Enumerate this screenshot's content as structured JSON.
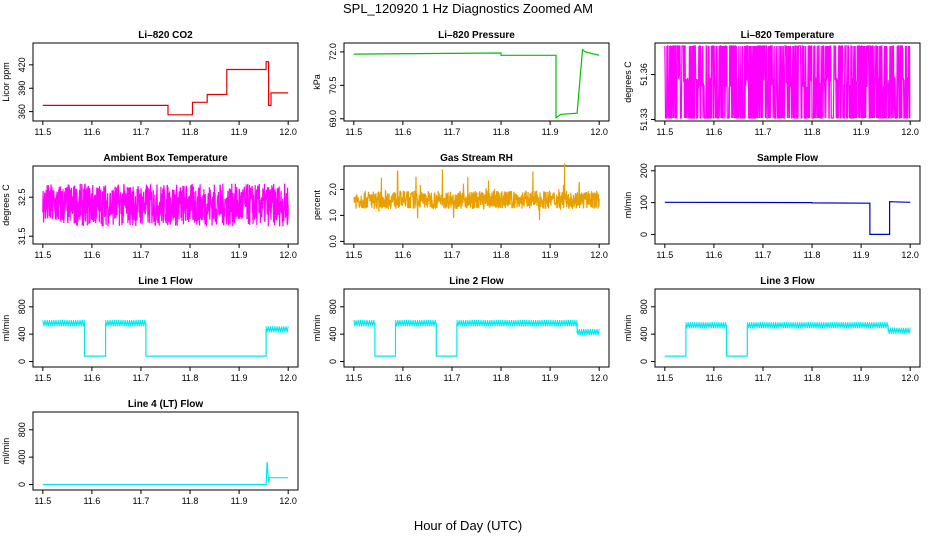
{
  "title": "SPL_120920  1 Hz Diagnostics Zoomed AM",
  "xlabel": "Hour of Day (UTC)",
  "chart_data": [
    {
      "type": "line",
      "title": "Li–820 CO2",
      "ylabel": "Licor ppm",
      "color": "#e00000",
      "xlim": [
        11.48,
        12.02
      ],
      "ylim": [
        348,
        448
      ],
      "xticks": [
        "11.5",
        "11.6",
        "11.7",
        "11.8",
        "11.9",
        "12.0"
      ],
      "yticks": [
        "360",
        "390",
        "420"
      ],
      "x": [
        11.5,
        11.755,
        11.755,
        11.805,
        11.805,
        11.835,
        11.835,
        11.875,
        11.875,
        11.955,
        11.955,
        11.96,
        11.96,
        11.965,
        11.965,
        12.0
      ],
      "y": [
        368,
        368,
        356,
        356,
        372,
        372,
        382,
        382,
        414,
        414,
        424,
        424,
        368,
        368,
        384,
        384
      ]
    },
    {
      "type": "line",
      "title": "Li–820 Pressure",
      "ylabel": "kPa",
      "color": "#00c000",
      "xlim": [
        11.48,
        12.02
      ],
      "ylim": [
        68.9,
        72.4
      ],
      "xticks": [
        "11.5",
        "11.6",
        "11.7",
        "11.8",
        "11.9",
        "12.0"
      ],
      "yticks": [
        "69.0",
        "70.5",
        "72.0"
      ],
      "x": [
        11.5,
        11.8,
        11.8,
        11.912,
        11.912,
        11.922,
        11.955,
        11.966,
        11.972,
        12.0
      ],
      "y": [
        71.9,
        71.95,
        71.85,
        71.85,
        69.05,
        69.2,
        69.25,
        72.1,
        72.0,
        71.85
      ]
    },
    {
      "type": "line",
      "title": "Li–820 Temperature",
      "ylabel": "degrees C",
      "color": "#ff00ff",
      "xlim": [
        11.48,
        12.02
      ],
      "ylim": [
        51.329,
        51.381
      ],
      "xticks": [
        "11.5",
        "11.6",
        "11.7",
        "11.8",
        "11.9",
        "12.0"
      ],
      "yticks": [
        "51.33",
        "51.36"
      ],
      "noise": {
        "base": 51.355,
        "amp": 0.024,
        "dense": true
      },
      "x": [
        11.5,
        12.0
      ],
      "y": [
        51.355,
        51.355
      ]
    },
    {
      "type": "line",
      "title": "Ambient Box Temperature",
      "ylabel": "degrees C",
      "color": "#ff00ff",
      "xlim": [
        11.48,
        12.02
      ],
      "ylim": [
        31.3,
        33.3
      ],
      "xticks": [
        "11.5",
        "11.6",
        "11.7",
        "11.8",
        "11.9",
        "12.0"
      ],
      "yticks": [
        "31.5",
        "32.5"
      ],
      "noise": {
        "base": 32.3,
        "amp": 0.55
      },
      "x": [
        11.5,
        12.0
      ],
      "y": [
        32.3,
        32.3
      ]
    },
    {
      "type": "line",
      "title": "Gas Stream RH",
      "ylabel": "percent",
      "color": "#e8a000",
      "xlim": [
        11.48,
        12.02
      ],
      "ylim": [
        -0.1,
        2.9
      ],
      "xticks": [
        "11.5",
        "11.6",
        "11.7",
        "11.8",
        "11.9",
        "12.0"
      ],
      "yticks": [
        "0.0",
        "1.0",
        "2.0"
      ],
      "noise": {
        "base": 1.6,
        "amp": 0.35,
        "spikes": 0.9
      },
      "x": [
        11.5,
        12.0
      ],
      "y": [
        1.6,
        1.6
      ]
    },
    {
      "type": "line",
      "title": "Sample Flow",
      "ylabel": "ml/min",
      "color": "#0000c0",
      "xlim": [
        11.48,
        12.02
      ],
      "ylim": [
        -30,
        215
      ],
      "xticks": [
        "11.5",
        "11.6",
        "11.7",
        "11.8",
        "11.9",
        "12.0"
      ],
      "yticks": [
        "0",
        "100",
        "200"
      ],
      "x": [
        11.5,
        11.8,
        11.8,
        11.918,
        11.918,
        11.958,
        11.958,
        12.0
      ],
      "y": [
        101,
        100,
        99,
        98,
        0,
        0,
        103,
        101
      ]
    },
    {
      "type": "line",
      "title": "Line 1 Flow",
      "ylabel": "ml/min",
      "color": "#00e8f0",
      "xlim": [
        11.48,
        12.02
      ],
      "ylim": [
        -80,
        1060
      ],
      "xticks": [
        "11.5",
        "11.6",
        "11.7",
        "11.8",
        "11.9",
        "12.0"
      ],
      "yticks": [
        "0",
        "400",
        "800"
      ],
      "x": [
        11.5,
        11.585,
        11.585,
        11.628,
        11.628,
        11.71,
        11.71,
        11.955,
        11.955,
        12.0
      ],
      "y": [
        560,
        560,
        80,
        80,
        560,
        560,
        80,
        80,
        470,
        470
      ],
      "osc": [
        [
          11.5,
          11.585,
          560
        ],
        [
          11.628,
          11.71,
          560
        ],
        [
          11.955,
          12.0,
          470
        ]
      ]
    },
    {
      "type": "line",
      "title": "Line 2 Flow",
      "ylabel": "ml/min",
      "color": "#00e8f0",
      "xlim": [
        11.48,
        12.02
      ],
      "ylim": [
        -80,
        1060
      ],
      "xticks": [
        "11.5",
        "11.6",
        "11.7",
        "11.8",
        "11.9",
        "12.0"
      ],
      "yticks": [
        "0",
        "400",
        "800"
      ],
      "x": [
        11.5,
        11.543,
        11.543,
        11.585,
        11.585,
        11.668,
        11.668,
        11.71,
        11.71,
        11.955,
        11.955,
        12.0
      ],
      "y": [
        560,
        560,
        80,
        80,
        560,
        560,
        80,
        80,
        560,
        560,
        430,
        430
      ],
      "osc": [
        [
          11.5,
          11.543,
          560
        ],
        [
          11.585,
          11.668,
          560
        ],
        [
          11.71,
          11.955,
          560
        ],
        [
          11.955,
          12.0,
          430
        ]
      ]
    },
    {
      "type": "line",
      "title": "Line 3 Flow",
      "ylabel": "ml/min",
      "color": "#00e8f0",
      "xlim": [
        11.48,
        12.02
      ],
      "ylim": [
        -80,
        1060
      ],
      "xticks": [
        "11.5",
        "11.6",
        "11.7",
        "11.8",
        "11.9",
        "12.0"
      ],
      "yticks": [
        "0",
        "400",
        "800"
      ],
      "x": [
        11.5,
        11.543,
        11.543,
        11.626,
        11.626,
        11.668,
        11.668,
        11.955,
        11.955,
        12.0
      ],
      "y": [
        80,
        80,
        530,
        530,
        80,
        80,
        530,
        530,
        450,
        450
      ],
      "osc": [
        [
          11.543,
          11.626,
          530
        ],
        [
          11.668,
          11.955,
          530
        ],
        [
          11.955,
          12.0,
          450
        ]
      ]
    },
    {
      "type": "line",
      "title": "Line 4 (LT) Flow",
      "ylabel": "ml/min",
      "color": "#00e8f0",
      "xlim": [
        11.48,
        12.02
      ],
      "ylim": [
        -80,
        1060
      ],
      "xticks": [
        "11.5",
        "11.6",
        "11.7",
        "11.8",
        "11.9",
        "12.0"
      ],
      "yticks": [
        "0",
        "400",
        "800"
      ],
      "x": [
        11.5,
        11.955,
        11.957,
        11.96,
        11.962,
        12.0
      ],
      "y": [
        0,
        0,
        330,
        30,
        100,
        100
      ]
    }
  ]
}
